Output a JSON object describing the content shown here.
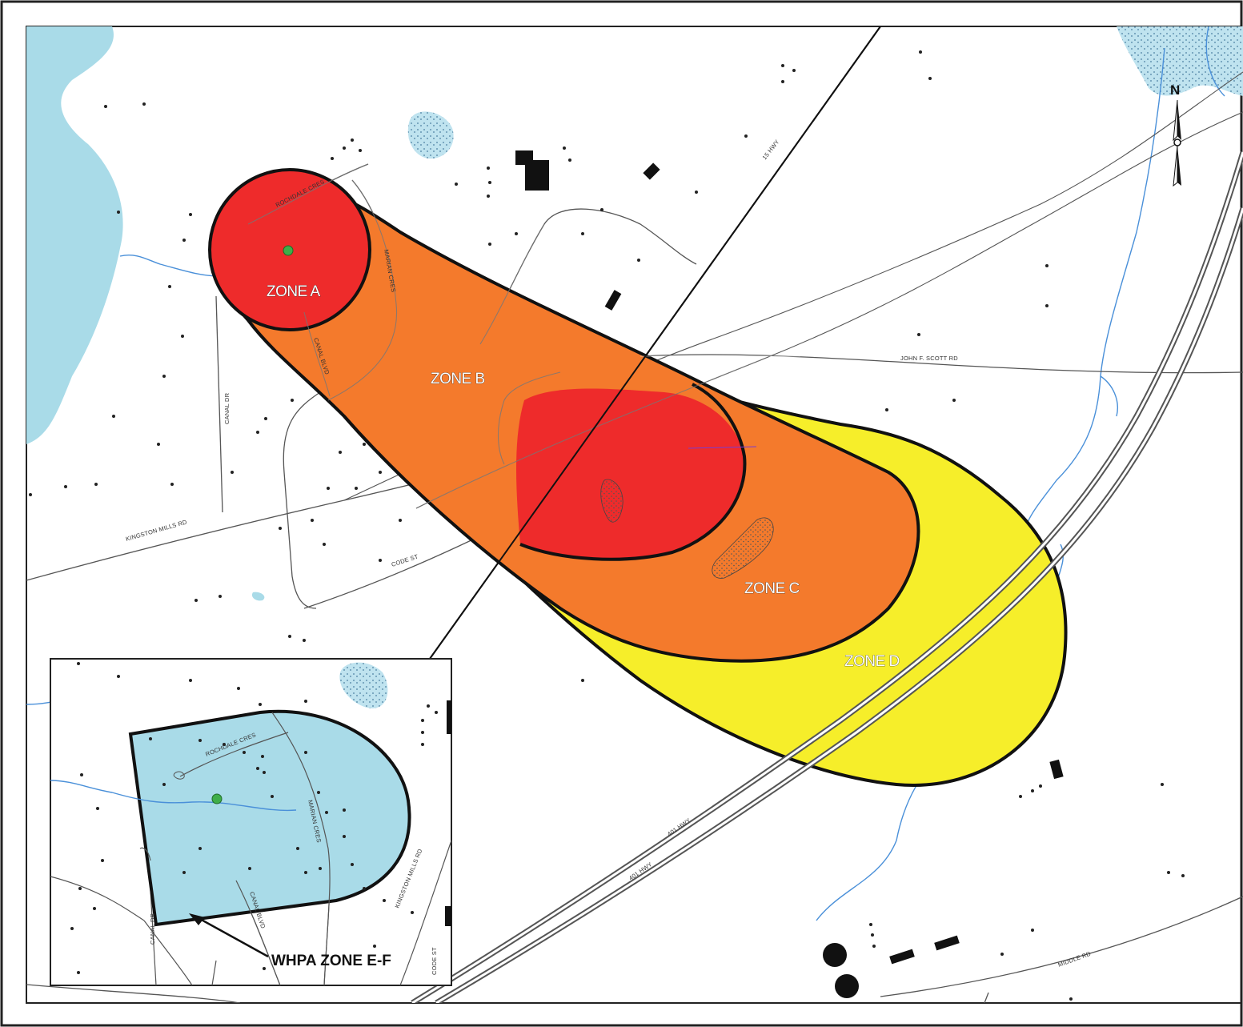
{
  "zones": {
    "a": "ZONE A",
    "b": "ZONE B",
    "c": "ZONE C",
    "d": "ZONE D",
    "ef": "WHPA ZONE E-F"
  },
  "roads": {
    "rochdale": "ROCHDALE CRES",
    "marian": "MARIAN CRES",
    "canal_blvd": "CANAL BLVD",
    "canal_dr": "CANAL DR",
    "kingston_mills": "KINGSTON MILLS RD",
    "code_st": "CODE ST",
    "hwy15": "15 HWY",
    "john_scott": "JOHN F. SCOTT RD",
    "hwy401": "401 HWY",
    "middle": "MIDDLE RD"
  },
  "north_arrow": {
    "label": "N",
    "icon": "north-arrow-icon"
  },
  "colors": {
    "zone_a": "#ee2b2b",
    "zone_b": "#f47a2c",
    "zone_c": "#f47a2c",
    "zone_d": "#f6ee2a",
    "zone_ef": "#a9dbe8",
    "water": "#a9dbe8",
    "well": "#3fae49"
  }
}
